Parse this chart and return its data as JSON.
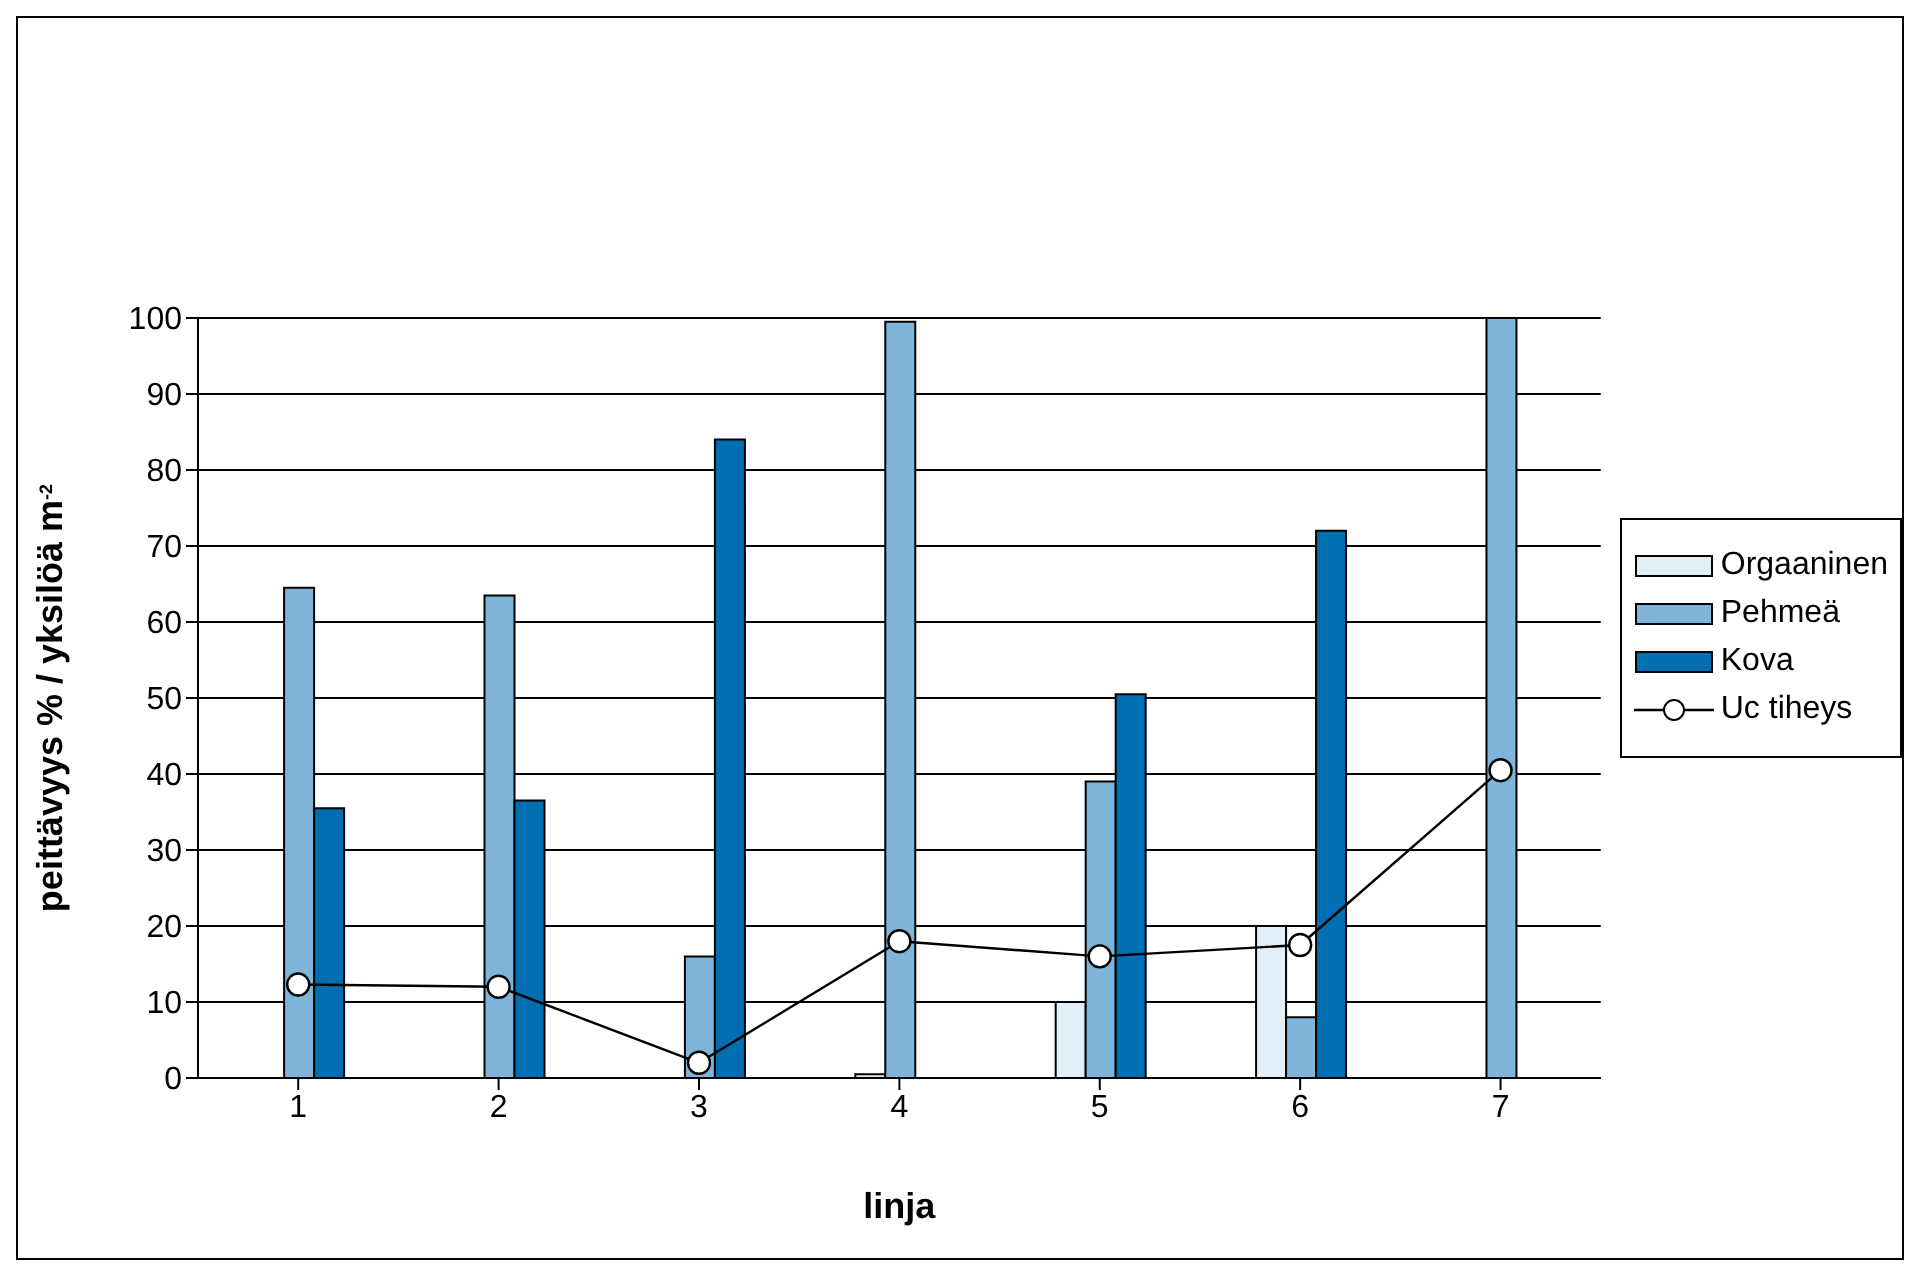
{
  "chart_data": {
    "type": "bar",
    "categories": [
      "1",
      "2",
      "3",
      "4",
      "5",
      "6",
      "7"
    ],
    "xlabel": "linja",
    "ylabel": "peittävyys % / yksilöä m$^{-2}$",
    "series": [
      {
        "name": "Orgaaninen",
        "color": "#e3eff7",
        "values": [
          null,
          null,
          null,
          0.5,
          10,
          20,
          null
        ]
      },
      {
        "name": "Pehmeä",
        "color": "#7fb5d8",
        "values": [
          64.5,
          63.5,
          16,
          99.5,
          39,
          8,
          100
        ]
      },
      {
        "name": "Kova",
        "color": "#006eb1",
        "values": [
          35.5,
          36.5,
          84,
          null,
          50.5,
          72,
          null
        ]
      },
      {
        "name": "Uc tiheys",
        "type": "line",
        "color": "#000000",
        "marker": "circle",
        "values": [
          12.3,
          12,
          2,
          18,
          16,
          17.5,
          40.5
        ]
      }
    ],
    "ylim": [
      0,
      100
    ],
    "yticks": [
      0,
      10,
      20,
      30,
      40,
      50,
      60,
      70,
      80,
      90,
      100
    ],
    "grid": "y",
    "legend": "right"
  }
}
